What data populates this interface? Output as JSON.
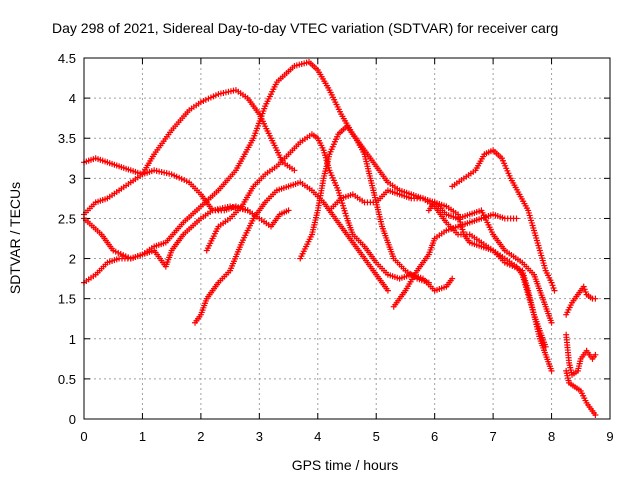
{
  "chart_data": {
    "type": "scatter",
    "title": "Day 298 of 2021, Sidereal Day-to-day VTEC variation (SDTVAR) for receiver carg",
    "xlabel": "GPS time / hours",
    "ylabel": "SDTVAR / TECUs",
    "xlim": [
      0,
      9
    ],
    "ylim": [
      0,
      4.5
    ],
    "x_ticks": [
      0,
      1,
      2,
      3,
      4,
      5,
      6,
      7,
      8,
      9
    ],
    "y_ticks": [
      0,
      0.5,
      1,
      1.5,
      2,
      2.5,
      3,
      3.5,
      4,
      4.5
    ],
    "x_tick_labels": [
      "0",
      "1",
      "2",
      "3",
      "4",
      "5",
      "6",
      "7",
      "8",
      "9"
    ],
    "y_tick_labels": [
      "0",
      "0.5",
      "1",
      "1.5",
      "2",
      "2.5",
      "3",
      "3.5",
      "4",
      "4.5"
    ],
    "grid": true,
    "marker": "+",
    "marker_color": "#ff0000",
    "series": [
      {
        "name": "s1",
        "points": [
          [
            0,
            3.2
          ],
          [
            0.2,
            3.25
          ],
          [
            0.4,
            3.2
          ],
          [
            0.6,
            3.15
          ],
          [
            0.8,
            3.1
          ],
          [
            1.0,
            3.05
          ],
          [
            1.2,
            3.1
          ],
          [
            1.5,
            3.05
          ],
          [
            1.8,
            2.95
          ],
          [
            2.0,
            2.8
          ],
          [
            2.2,
            2.6
          ],
          [
            2.5,
            2.65
          ],
          [
            2.8,
            2.6
          ],
          [
            3.0,
            2.5
          ],
          [
            3.2,
            2.4
          ],
          [
            3.35,
            2.55
          ],
          [
            3.5,
            2.6
          ]
        ]
      },
      {
        "name": "s2",
        "points": [
          [
            0,
            2.55
          ],
          [
            0.2,
            2.7
          ],
          [
            0.4,
            2.75
          ],
          [
            0.6,
            2.85
          ],
          [
            0.8,
            2.95
          ],
          [
            1.0,
            3.05
          ],
          [
            1.2,
            3.3
          ],
          [
            1.5,
            3.6
          ],
          [
            1.8,
            3.85
          ],
          [
            2.0,
            3.95
          ],
          [
            2.3,
            4.05
          ],
          [
            2.6,
            4.1
          ],
          [
            2.8,
            4.0
          ],
          [
            3.0,
            3.8
          ],
          [
            3.2,
            3.5
          ],
          [
            3.4,
            3.2
          ],
          [
            3.6,
            3.1
          ]
        ]
      },
      {
        "name": "s3",
        "points": [
          [
            0,
            2.5
          ],
          [
            0.3,
            2.3
          ],
          [
            0.5,
            2.1
          ],
          [
            0.8,
            2.0
          ],
          [
            1.0,
            2.05
          ],
          [
            1.2,
            2.1
          ],
          [
            1.4,
            1.9
          ],
          [
            1.5,
            2.1
          ],
          [
            1.7,
            2.3
          ],
          [
            2.0,
            2.5
          ],
          [
            2.2,
            2.6
          ],
          [
            2.4,
            2.6
          ],
          [
            2.6,
            2.65
          ],
          [
            2.8,
            2.6
          ]
        ]
      },
      {
        "name": "s4",
        "points": [
          [
            0,
            1.7
          ],
          [
            0.2,
            1.8
          ],
          [
            0.4,
            1.95
          ],
          [
            0.6,
            2.0
          ],
          [
            0.8,
            2.0
          ],
          [
            1.0,
            2.05
          ],
          [
            1.2,
            2.15
          ],
          [
            1.4,
            2.2
          ],
          [
            1.7,
            2.45
          ],
          [
            2.0,
            2.65
          ],
          [
            2.3,
            2.85
          ],
          [
            2.6,
            3.1
          ],
          [
            2.9,
            3.5
          ],
          [
            3.1,
            3.9
          ],
          [
            3.3,
            4.2
          ],
          [
            3.6,
            4.4
          ],
          [
            3.85,
            4.45
          ],
          [
            4.0,
            4.35
          ],
          [
            4.2,
            4.1
          ],
          [
            4.4,
            3.8
          ],
          [
            4.6,
            3.55
          ],
          [
            4.8,
            3.35
          ],
          [
            5.0,
            3.15
          ],
          [
            5.2,
            2.95
          ],
          [
            5.4,
            2.85
          ],
          [
            5.6,
            2.8
          ],
          [
            5.8,
            2.75
          ],
          [
            6.0,
            2.7
          ],
          [
            6.2,
            2.55
          ],
          [
            6.4,
            2.5
          ],
          [
            6.6,
            2.55
          ],
          [
            6.8,
            2.6
          ],
          [
            7.0,
            2.3
          ],
          [
            7.2,
            2.1
          ],
          [
            7.5,
            1.95
          ],
          [
            7.7,
            1.8
          ],
          [
            7.8,
            1.6
          ],
          [
            7.9,
            1.4
          ],
          [
            8.0,
            1.2
          ]
        ]
      },
      {
        "name": "s5",
        "points": [
          [
            1.9,
            1.2
          ],
          [
            2.0,
            1.3
          ],
          [
            2.1,
            1.5
          ],
          [
            2.3,
            1.7
          ],
          [
            2.5,
            1.85
          ],
          [
            2.7,
            2.2
          ],
          [
            2.9,
            2.5
          ],
          [
            3.1,
            2.7
          ],
          [
            3.3,
            2.85
          ],
          [
            3.5,
            2.9
          ],
          [
            3.7,
            2.95
          ],
          [
            3.9,
            2.85
          ],
          [
            4.1,
            2.7
          ],
          [
            4.3,
            2.5
          ],
          [
            4.5,
            2.3
          ],
          [
            4.7,
            2.1
          ],
          [
            4.9,
            1.9
          ],
          [
            5.1,
            1.7
          ],
          [
            5.2,
            1.6
          ]
        ]
      },
      {
        "name": "s6",
        "points": [
          [
            2.1,
            2.1
          ],
          [
            2.3,
            2.4
          ],
          [
            2.5,
            2.5
          ],
          [
            2.7,
            2.65
          ],
          [
            2.9,
            2.9
          ],
          [
            3.1,
            3.05
          ],
          [
            3.3,
            3.15
          ],
          [
            3.5,
            3.3
          ],
          [
            3.7,
            3.45
          ],
          [
            3.9,
            3.55
          ],
          [
            4.0,
            3.5
          ],
          [
            4.1,
            3.35
          ],
          [
            4.2,
            3.1
          ],
          [
            4.35,
            2.85
          ],
          [
            4.5,
            2.5
          ],
          [
            4.6,
            2.3
          ],
          [
            4.8,
            2.15
          ],
          [
            5.0,
            1.95
          ],
          [
            5.2,
            1.8
          ],
          [
            5.4,
            1.75
          ],
          [
            5.6,
            1.8
          ],
          [
            5.8,
            1.75
          ],
          [
            6.0,
            1.6
          ],
          [
            6.2,
            1.65
          ],
          [
            6.3,
            1.75
          ]
        ]
      },
      {
        "name": "s7",
        "points": [
          [
            3.7,
            2.0
          ],
          [
            3.9,
            2.3
          ],
          [
            4.0,
            2.6
          ],
          [
            4.1,
            3.0
          ],
          [
            4.2,
            3.3
          ],
          [
            4.35,
            3.55
          ],
          [
            4.5,
            3.65
          ],
          [
            4.65,
            3.5
          ],
          [
            4.8,
            3.3
          ],
          [
            4.9,
            3.0
          ],
          [
            5.0,
            2.7
          ],
          [
            5.1,
            2.4
          ],
          [
            5.2,
            2.2
          ],
          [
            5.3,
            2.0
          ],
          [
            5.5,
            1.85
          ],
          [
            5.7,
            1.75
          ],
          [
            5.9,
            1.7
          ]
        ]
      },
      {
        "name": "s8",
        "points": [
          [
            4.2,
            2.6
          ],
          [
            4.4,
            2.75
          ],
          [
            4.6,
            2.8
          ],
          [
            4.8,
            2.7
          ],
          [
            5.0,
            2.7
          ],
          [
            5.2,
            2.85
          ],
          [
            5.4,
            2.8
          ],
          [
            5.6,
            2.75
          ],
          [
            5.8,
            2.75
          ],
          [
            6.0,
            2.65
          ],
          [
            6.2,
            2.45
          ],
          [
            6.4,
            2.3
          ],
          [
            6.6,
            2.3
          ],
          [
            6.8,
            2.2
          ],
          [
            7.0,
            2.1
          ],
          [
            7.2,
            1.95
          ],
          [
            7.5,
            1.85
          ],
          [
            7.6,
            1.6
          ],
          [
            7.7,
            1.3
          ],
          [
            7.8,
            1.0
          ],
          [
            7.9,
            0.8
          ],
          [
            8.0,
            0.6
          ]
        ]
      },
      {
        "name": "s9",
        "points": [
          [
            5.3,
            1.4
          ],
          [
            5.5,
            1.6
          ],
          [
            5.7,
            1.85
          ],
          [
            5.9,
            2.05
          ],
          [
            6.0,
            2.25
          ],
          [
            6.2,
            2.35
          ],
          [
            6.4,
            2.4
          ],
          [
            6.6,
            2.45
          ],
          [
            6.8,
            2.5
          ],
          [
            7.0,
            2.55
          ],
          [
            7.2,
            2.5
          ],
          [
            7.4,
            2.5
          ]
        ]
      },
      {
        "name": "s10",
        "points": [
          [
            5.9,
            2.6
          ],
          [
            6.0,
            2.7
          ],
          [
            6.2,
            2.65
          ],
          [
            6.4,
            2.55
          ],
          [
            6.5,
            2.3
          ],
          [
            6.6,
            2.2
          ],
          [
            6.8,
            2.15
          ],
          [
            7.0,
            2.1
          ],
          [
            7.2,
            2.0
          ],
          [
            7.4,
            1.9
          ],
          [
            7.5,
            1.8
          ],
          [
            7.6,
            1.55
          ],
          [
            7.7,
            1.3
          ],
          [
            7.8,
            1.1
          ],
          [
            7.9,
            0.9
          ]
        ]
      },
      {
        "name": "s11",
        "points": [
          [
            6.3,
            2.9
          ],
          [
            6.5,
            3.0
          ],
          [
            6.7,
            3.1
          ],
          [
            6.85,
            3.3
          ],
          [
            7.0,
            3.35
          ],
          [
            7.15,
            3.25
          ],
          [
            7.3,
            3.0
          ],
          [
            7.45,
            2.8
          ],
          [
            7.6,
            2.6
          ],
          [
            7.7,
            2.35
          ],
          [
            7.8,
            2.1
          ],
          [
            7.9,
            1.85
          ],
          [
            8.0,
            1.7
          ],
          [
            8.05,
            1.6
          ]
        ]
      },
      {
        "name": "s12",
        "points": [
          [
            8.25,
            1.3
          ],
          [
            8.35,
            1.45
          ],
          [
            8.45,
            1.55
          ],
          [
            8.55,
            1.65
          ],
          [
            8.6,
            1.55
          ],
          [
            8.7,
            1.5
          ],
          [
            8.75,
            1.5
          ]
        ]
      },
      {
        "name": "s13",
        "points": [
          [
            8.25,
            1.05
          ],
          [
            8.3,
            0.7
          ],
          [
            8.35,
            0.55
          ],
          [
            8.45,
            0.6
          ],
          [
            8.5,
            0.75
          ],
          [
            8.55,
            0.8
          ],
          [
            8.6,
            0.85
          ],
          [
            8.65,
            0.8
          ],
          [
            8.7,
            0.75
          ],
          [
            8.75,
            0.8
          ]
        ]
      },
      {
        "name": "s14",
        "points": [
          [
            8.25,
            0.6
          ],
          [
            8.3,
            0.45
          ],
          [
            8.4,
            0.4
          ],
          [
            8.5,
            0.35
          ],
          [
            8.6,
            0.2
          ],
          [
            8.7,
            0.1
          ],
          [
            8.75,
            0.05
          ]
        ]
      }
    ]
  }
}
